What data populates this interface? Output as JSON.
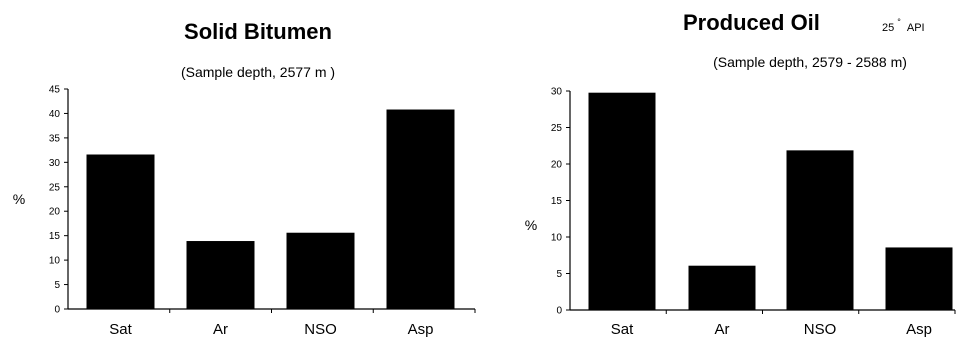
{
  "chart_data": [
    {
      "type": "bar",
      "title": "Solid Bitumen",
      "subtitle": "(Sample depth, 2577 m )",
      "ylabel": "%",
      "xlabel": "",
      "categories": [
        "Sat",
        "Ar",
        "NSO",
        "Asp"
      ],
      "values": [
        31.5,
        13.8,
        15.5,
        40.7
      ],
      "ylim": [
        0,
        45
      ],
      "yticks": [
        0,
        5,
        10,
        15,
        20,
        25,
        30,
        35,
        40,
        45
      ],
      "bar_color": "#000000"
    },
    {
      "type": "bar",
      "title": "Produced Oil",
      "api_value": "25",
      "api_degree": "°",
      "api_unit": "API",
      "subtitle": "(Sample depth, 2579 - 2588 m)",
      "ylabel": "%",
      "xlabel": "",
      "categories": [
        "Sat",
        "Ar",
        "NSO",
        "Asp"
      ],
      "values": [
        29.7,
        6.0,
        21.8,
        8.5
      ],
      "ylim": [
        0,
        30
      ],
      "yticks": [
        0,
        5,
        10,
        15,
        20,
        25,
        30
      ],
      "bar_color": "#000000"
    }
  ]
}
